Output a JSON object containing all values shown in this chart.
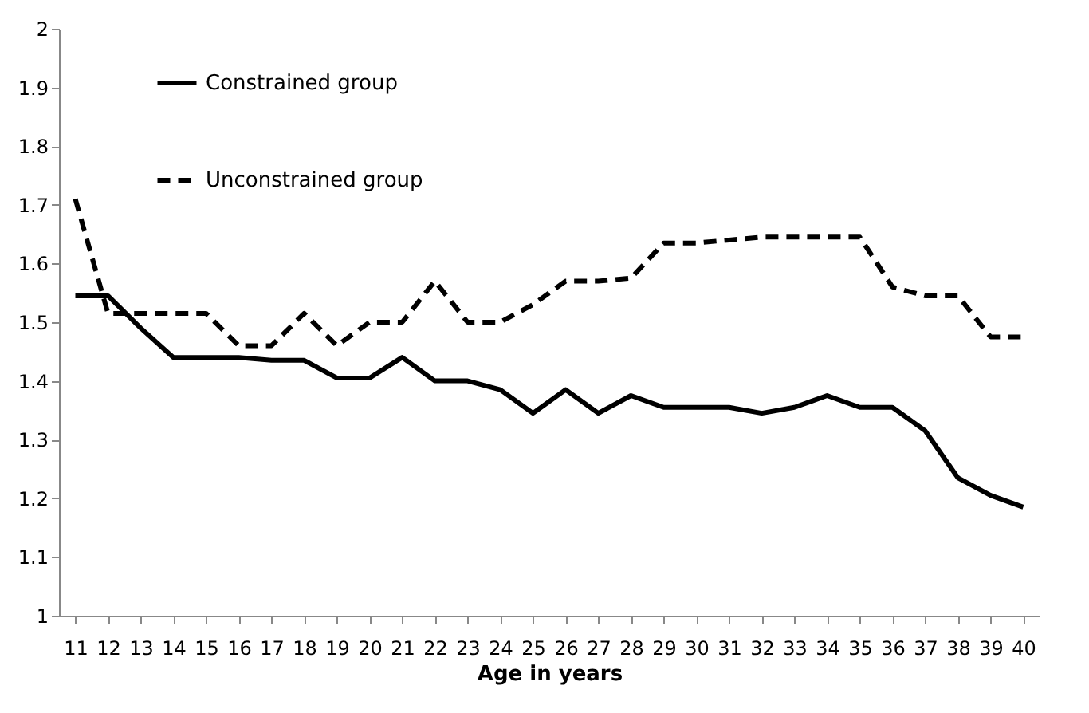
{
  "chart_data": {
    "type": "line",
    "xlabel": "Age in years",
    "categories": [
      "11",
      "12",
      "13",
      "14",
      "15",
      "16",
      "17",
      "18",
      "19",
      "20",
      "21",
      "22",
      "23",
      "24",
      "25",
      "26",
      "27",
      "28",
      "29",
      "30",
      "31",
      "32",
      "33",
      "34",
      "35",
      "36",
      "37",
      "38",
      "39",
      "40"
    ],
    "series": [
      {
        "name": "Constrained group",
        "color": "#000000",
        "line_style": "solid",
        "values": [
          1.545,
          1.545,
          1.49,
          1.44,
          1.44,
          1.44,
          1.435,
          1.435,
          1.405,
          1.405,
          1.44,
          1.4,
          1.4,
          1.385,
          1.345,
          1.385,
          1.345,
          1.375,
          1.355,
          1.355,
          1.355,
          1.345,
          1.355,
          1.375,
          1.355,
          1.355,
          1.315,
          1.235,
          1.205,
          1.185
        ]
      },
      {
        "name": "Unconstrained group",
        "color": "#000000",
        "line_style": "dashed",
        "values": [
          1.71,
          1.515,
          1.515,
          1.515,
          1.515,
          1.46,
          1.46,
          1.515,
          1.46,
          1.5,
          1.5,
          1.57,
          1.5,
          1.5,
          1.53,
          1.57,
          1.57,
          1.575,
          1.635,
          1.635,
          1.64,
          1.645,
          1.645,
          1.645,
          1.645,
          1.56,
          1.545,
          1.545,
          1.475,
          1.475
        ]
      }
    ],
    "ylim": [
      1,
      2
    ],
    "yticks": [
      1,
      1.1,
      1.2,
      1.3,
      1.4,
      1.5,
      1.6,
      1.7,
      1.8,
      1.9,
      2
    ],
    "grid": false,
    "legend": "top left",
    "marker": "none"
  }
}
